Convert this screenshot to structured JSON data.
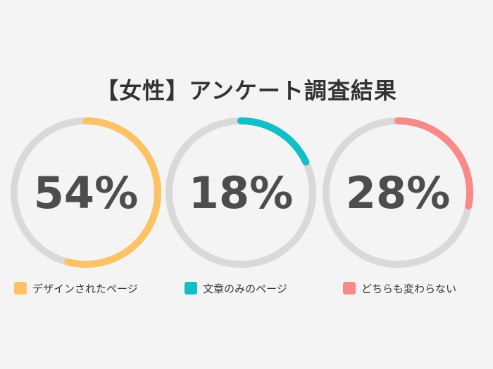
{
  "chart_data": {
    "type": "donut",
    "title": "【女性】アンケート調査結果",
    "track_color": "#d9d9d9",
    "segments": [
      {
        "name": "デザインされたページ",
        "value": 54,
        "label": "54%",
        "color": "#fcc265"
      },
      {
        "name": "文章のみのページ",
        "value": 18,
        "label": "18%",
        "color": "#12bfc8"
      },
      {
        "name": "どちらも変わらない",
        "value": 28,
        "label": "28%",
        "color": "#fa8a88"
      }
    ]
  }
}
